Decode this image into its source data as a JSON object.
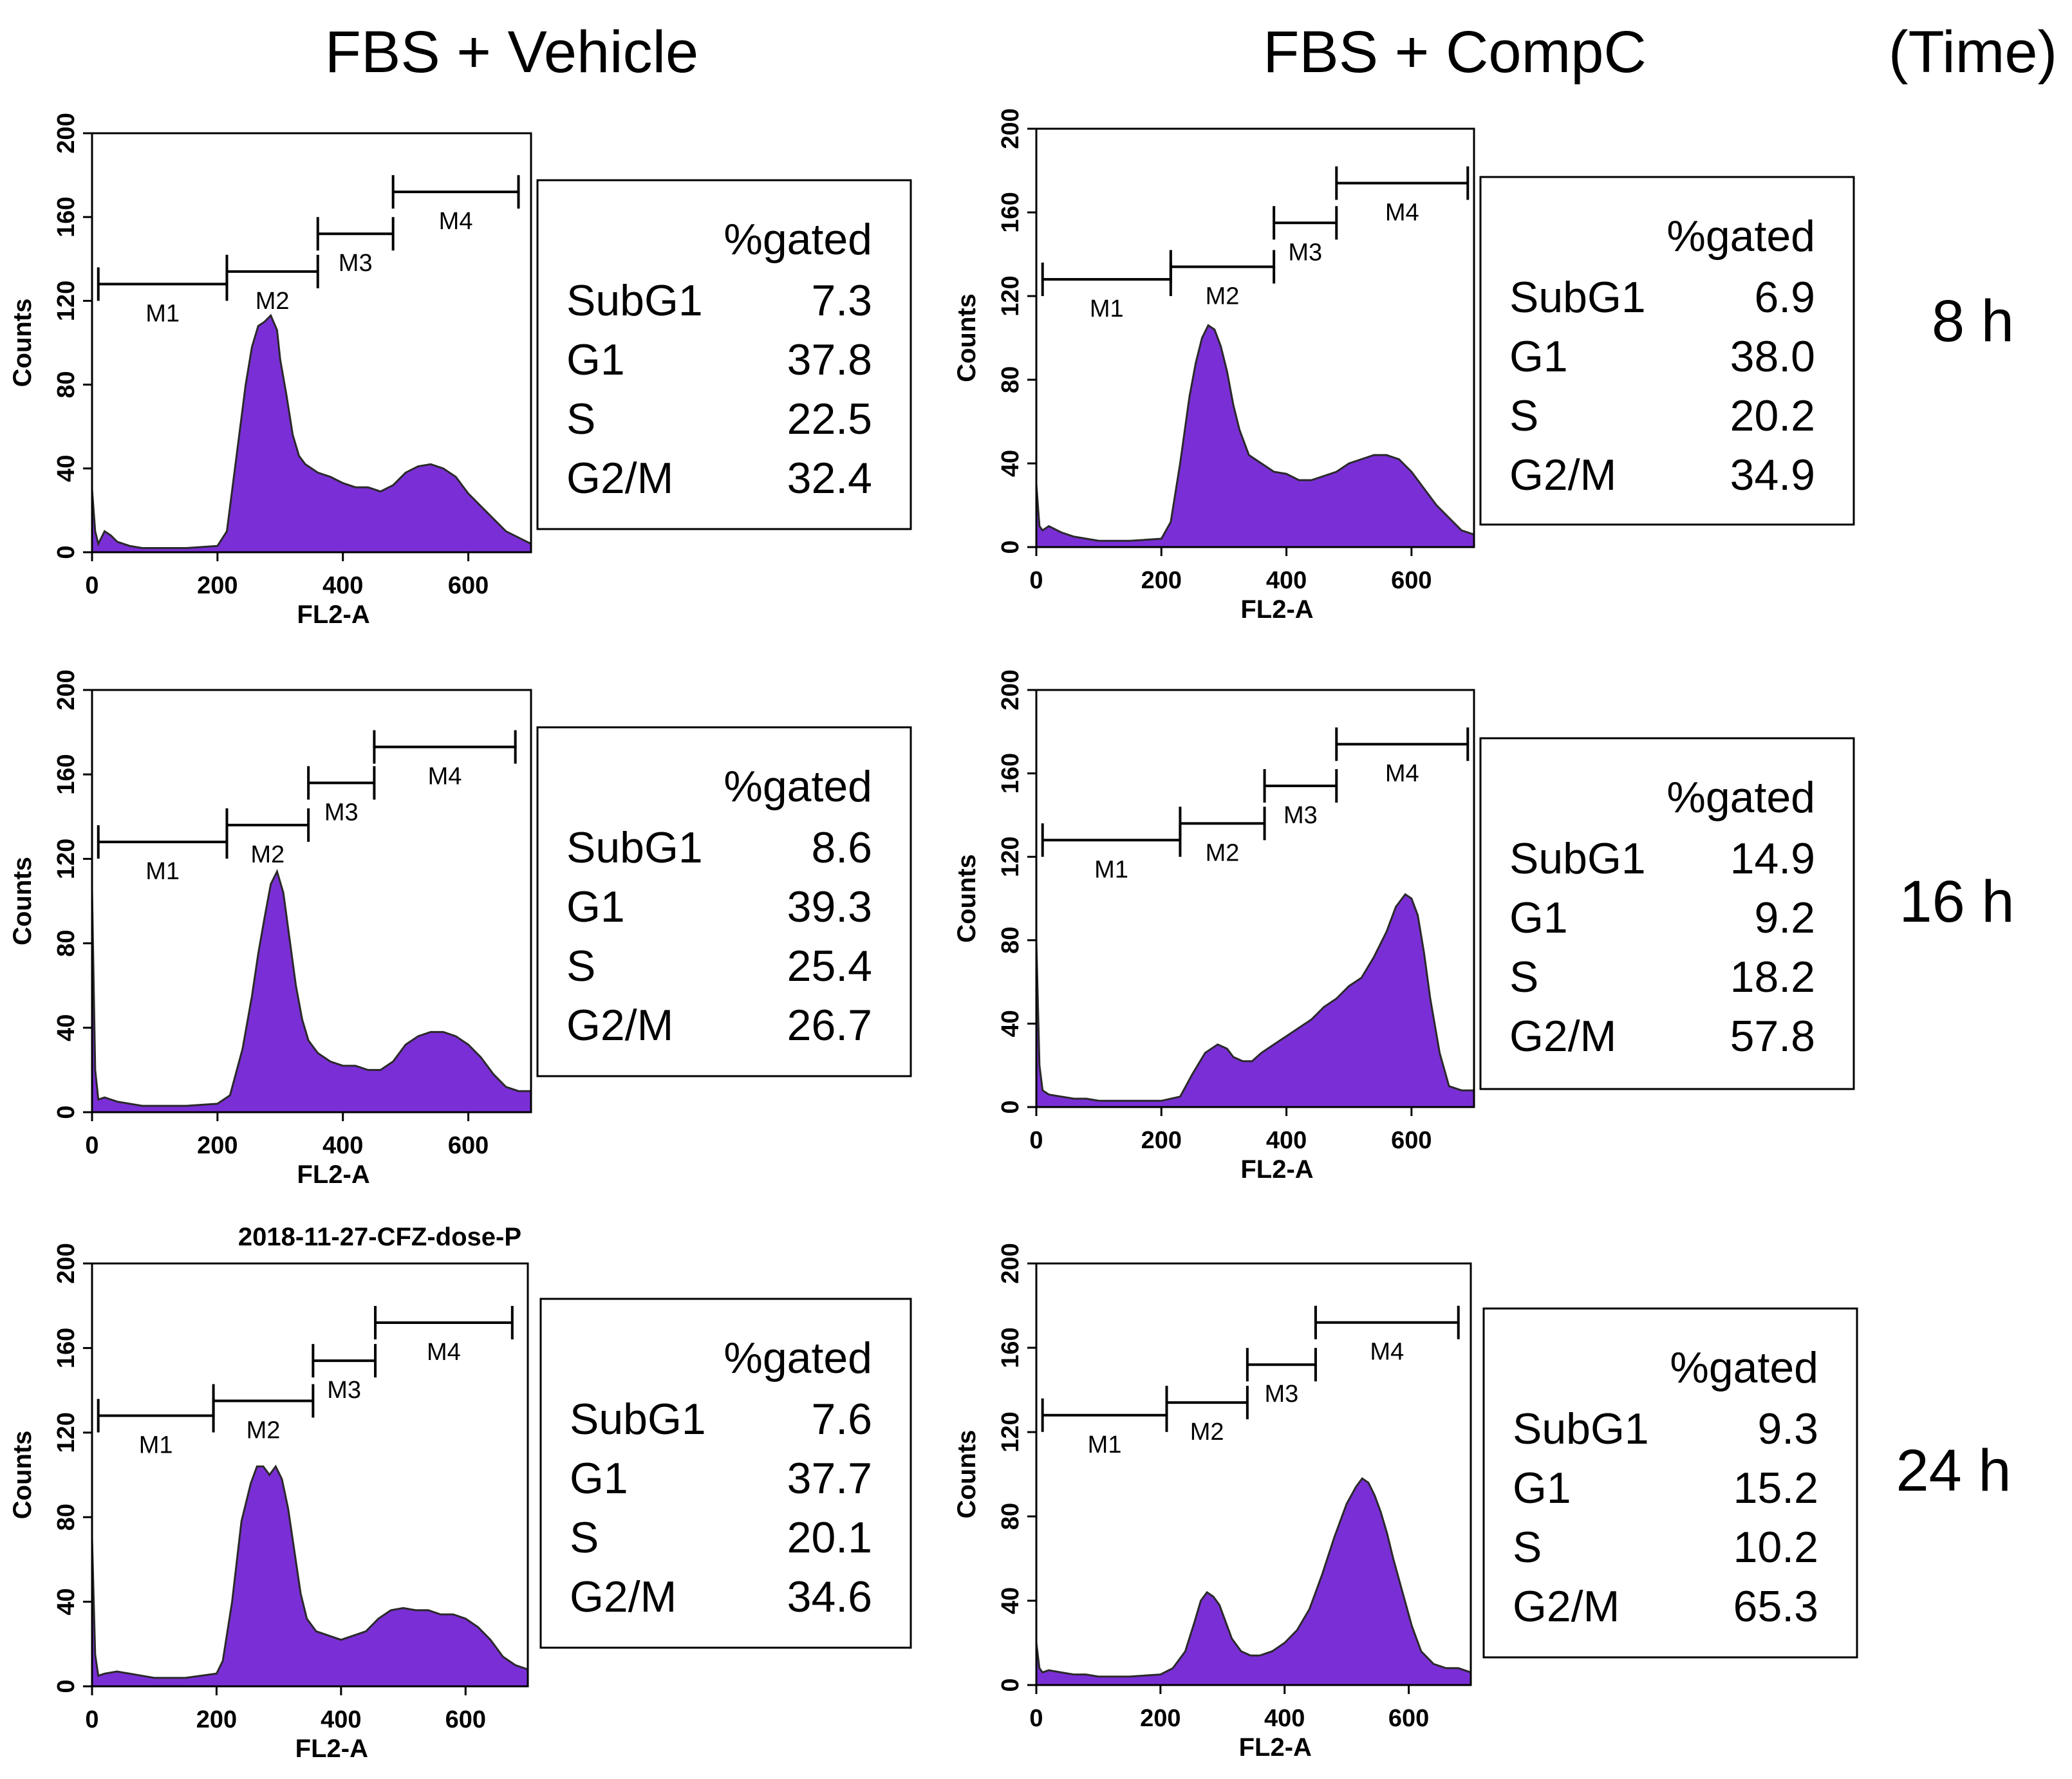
{
  "headers": {
    "col1": "FBS + Vehicle",
    "col2": "FBS + CompC",
    "time": "(Time)"
  },
  "rows": [
    "8 h",
    "16 h",
    "24 h"
  ],
  "colors": {
    "histogram_fill": "#7a2fd6",
    "histogram_edge": "#2a2a2a",
    "axis": "#000000"
  },
  "axis_common": {
    "xlabel": "FL2-A",
    "ylabel": "Counts",
    "xticks": [
      0,
      200,
      400,
      600
    ],
    "yticks": [
      0,
      40,
      80,
      120,
      160,
      200
    ],
    "xlim": [
      0,
      700
    ],
    "ylim": [
      0,
      200
    ]
  },
  "chart_data": [
    {
      "type": "area",
      "condition": "FBS + Vehicle",
      "time": "8 h",
      "title": "",
      "gates": [
        {
          "name": "M1",
          "range": [
            10,
            215
          ],
          "level": 128
        },
        {
          "name": "M2",
          "range": [
            215,
            360
          ],
          "level": 134
        },
        {
          "name": "M3",
          "range": [
            360,
            480
          ],
          "level": 152
        },
        {
          "name": "M4",
          "range": [
            480,
            680
          ],
          "level": 172
        }
      ],
      "table_header": "%gated",
      "table": [
        {
          "label": "SubG1",
          "value": "7.3"
        },
        {
          "label": "G1",
          "value": "37.8"
        },
        {
          "label": "S",
          "value": "22.5"
        },
        {
          "label": "G2/M",
          "value": "32.4"
        }
      ],
      "x": [
        0,
        5,
        10,
        20,
        30,
        40,
        60,
        80,
        100,
        150,
        200,
        215,
        230,
        245,
        255,
        265,
        275,
        285,
        295,
        300,
        310,
        320,
        330,
        340,
        350,
        360,
        380,
        400,
        420,
        440,
        460,
        480,
        500,
        520,
        540,
        560,
        580,
        600,
        620,
        640,
        660,
        680,
        700
      ],
      "y": [
        30,
        10,
        4,
        10,
        8,
        5,
        3,
        2,
        2,
        2,
        3,
        10,
        45,
        80,
        98,
        108,
        110,
        113,
        106,
        92,
        75,
        56,
        46,
        42,
        40,
        38,
        36,
        33,
        31,
        31,
        29,
        32,
        38,
        41,
        42,
        40,
        36,
        28,
        22,
        16,
        10,
        7,
        4
      ]
    },
    {
      "type": "area",
      "condition": "FBS + CompC",
      "time": "8 h",
      "title": "",
      "gates": [
        {
          "name": "M1",
          "range": [
            10,
            215
          ],
          "level": 128
        },
        {
          "name": "M2",
          "range": [
            215,
            380
          ],
          "level": 134
        },
        {
          "name": "M3",
          "range": [
            380,
            480
          ],
          "level": 155
        },
        {
          "name": "M4",
          "range": [
            480,
            690
          ],
          "level": 174
        }
      ],
      "table_header": "%gated",
      "table": [
        {
          "label": "SubG1",
          "value": "6.9"
        },
        {
          "label": "G1",
          "value": "38.0"
        },
        {
          "label": "S",
          "value": "20.2"
        },
        {
          "label": "G2/M",
          "value": "34.9"
        }
      ],
      "x": [
        0,
        5,
        10,
        20,
        40,
        60,
        80,
        100,
        150,
        200,
        215,
        230,
        245,
        255,
        265,
        275,
        285,
        295,
        305,
        315,
        325,
        340,
        360,
        380,
        400,
        420,
        440,
        460,
        480,
        500,
        520,
        540,
        560,
        580,
        600,
        620,
        640,
        660,
        680,
        700
      ],
      "y": [
        30,
        10,
        8,
        10,
        7,
        5,
        4,
        3,
        3,
        4,
        12,
        40,
        72,
        88,
        100,
        106,
        104,
        96,
        84,
        68,
        56,
        44,
        40,
        36,
        35,
        32,
        32,
        34,
        36,
        40,
        42,
        44,
        44,
        42,
        36,
        28,
        20,
        14,
        8,
        6
      ]
    },
    {
      "type": "area",
      "condition": "FBS + Vehicle",
      "time": "16 h",
      "title": "",
      "gates": [
        {
          "name": "M1",
          "range": [
            10,
            215
          ],
          "level": 128
        },
        {
          "name": "M2",
          "range": [
            215,
            345
          ],
          "level": 136
        },
        {
          "name": "M3",
          "range": [
            345,
            450
          ],
          "level": 156
        },
        {
          "name": "M4",
          "range": [
            450,
            675
          ],
          "level": 173
        }
      ],
      "table_header": "%gated",
      "table": [
        {
          "label": "SubG1",
          "value": "8.6"
        },
        {
          "label": "G1",
          "value": "39.3"
        },
        {
          "label": "S",
          "value": "25.4"
        },
        {
          "label": "G2/M",
          "value": "26.7"
        }
      ],
      "x": [
        0,
        5,
        10,
        20,
        40,
        60,
        80,
        100,
        150,
        200,
        220,
        240,
        255,
        265,
        275,
        285,
        295,
        305,
        315,
        325,
        335,
        345,
        360,
        380,
        400,
        420,
        440,
        460,
        480,
        500,
        520,
        540,
        560,
        580,
        600,
        620,
        640,
        660,
        680,
        700
      ],
      "y": [
        105,
        20,
        6,
        7,
        5,
        4,
        3,
        3,
        3,
        4,
        8,
        30,
        55,
        75,
        92,
        108,
        114,
        104,
        82,
        60,
        44,
        34,
        28,
        24,
        22,
        22,
        20,
        20,
        24,
        32,
        36,
        38,
        38,
        36,
        32,
        26,
        18,
        12,
        10,
        10
      ]
    },
    {
      "type": "area",
      "condition": "FBS + CompC",
      "time": "16 h",
      "title": "",
      "gates": [
        {
          "name": "M1",
          "range": [
            10,
            230
          ],
          "level": 128
        },
        {
          "name": "M2",
          "range": [
            230,
            365
          ],
          "level": 136
        },
        {
          "name": "M3",
          "range": [
            365,
            480
          ],
          "level": 154
        },
        {
          "name": "M4",
          "range": [
            480,
            690
          ],
          "level": 174
        }
      ],
      "table_header": "%gated",
      "table": [
        {
          "label": "SubG1",
          "value": "14.9"
        },
        {
          "label": "G1",
          "value": "9.2"
        },
        {
          "label": "S",
          "value": "18.2"
        },
        {
          "label": "G2/M",
          "value": "57.8"
        }
      ],
      "x": [
        0,
        5,
        10,
        20,
        40,
        60,
        80,
        100,
        150,
        200,
        230,
        250,
        270,
        290,
        305,
        315,
        330,
        345,
        360,
        380,
        400,
        420,
        440,
        460,
        480,
        500,
        520,
        540,
        560,
        575,
        590,
        600,
        610,
        620,
        630,
        645,
        660,
        680,
        700
      ],
      "y": [
        80,
        20,
        8,
        6,
        5,
        4,
        4,
        3,
        3,
        3,
        5,
        16,
        26,
        30,
        28,
        24,
        22,
        22,
        26,
        30,
        34,
        38,
        42,
        48,
        52,
        58,
        62,
        72,
        84,
        96,
        102,
        100,
        92,
        74,
        52,
        26,
        10,
        8,
        8
      ]
    },
    {
      "type": "area",
      "condition": "FBS + Vehicle",
      "time": "24 h",
      "title": "2018-11-27-CFZ-dose-P",
      "gates": [
        {
          "name": "M1",
          "range": [
            10,
            195
          ],
          "level": 128
        },
        {
          "name": "M2",
          "range": [
            195,
            355
          ],
          "level": 135
        },
        {
          "name": "M3",
          "range": [
            355,
            455
          ],
          "level": 154
        },
        {
          "name": "M4",
          "range": [
            455,
            675
          ],
          "level": 172
        }
      ],
      "table_header": "%gated",
      "table": [
        {
          "label": "SubG1",
          "value": "7.6"
        },
        {
          "label": "G1",
          "value": "37.7"
        },
        {
          "label": "S",
          "value": "20.1"
        },
        {
          "label": "G2/M",
          "value": "34.6"
        }
      ],
      "x": [
        0,
        5,
        10,
        20,
        40,
        60,
        80,
        100,
        150,
        200,
        210,
        225,
        240,
        255,
        265,
        275,
        285,
        295,
        305,
        315,
        325,
        335,
        345,
        360,
        380,
        400,
        420,
        440,
        460,
        480,
        500,
        520,
        540,
        560,
        580,
        600,
        620,
        640,
        660,
        680,
        700
      ],
      "y": [
        70,
        15,
        5,
        6,
        7,
        6,
        5,
        4,
        4,
        6,
        12,
        40,
        78,
        96,
        104,
        104,
        100,
        104,
        98,
        84,
        64,
        44,
        32,
        26,
        24,
        22,
        24,
        26,
        32,
        36,
        37,
        36,
        36,
        34,
        34,
        32,
        28,
        22,
        14,
        10,
        8
      ]
    },
    {
      "type": "area",
      "condition": "FBS + CompC",
      "time": "24 h",
      "title": "",
      "gates": [
        {
          "name": "M1",
          "range": [
            10,
            210
          ],
          "level": 128
        },
        {
          "name": "M2",
          "range": [
            210,
            340
          ],
          "level": 134
        },
        {
          "name": "M3",
          "range": [
            340,
            450
          ],
          "level": 152
        },
        {
          "name": "M4",
          "range": [
            450,
            680
          ],
          "level": 172
        }
      ],
      "table_header": "%gated",
      "table": [
        {
          "label": "SubG1",
          "value": "9.3"
        },
        {
          "label": "G1",
          "value": "15.2"
        },
        {
          "label": "S",
          "value": "10.2"
        },
        {
          "label": "G2/M",
          "value": "65.3"
        }
      ],
      "x": [
        0,
        5,
        10,
        20,
        40,
        60,
        80,
        100,
        150,
        200,
        220,
        240,
        255,
        265,
        275,
        285,
        295,
        305,
        315,
        330,
        345,
        360,
        380,
        400,
        420,
        440,
        460,
        480,
        500,
        515,
        525,
        535,
        545,
        555,
        565,
        575,
        590,
        605,
        620,
        640,
        660,
        680,
        700
      ],
      "y": [
        20,
        8,
        6,
        7,
        6,
        5,
        5,
        4,
        4,
        5,
        8,
        16,
        30,
        40,
        44,
        42,
        38,
        30,
        22,
        16,
        14,
        14,
        16,
        20,
        26,
        36,
        52,
        70,
        86,
        94,
        98,
        96,
        90,
        82,
        72,
        60,
        44,
        28,
        16,
        10,
        8,
        8,
        6
      ]
    }
  ]
}
